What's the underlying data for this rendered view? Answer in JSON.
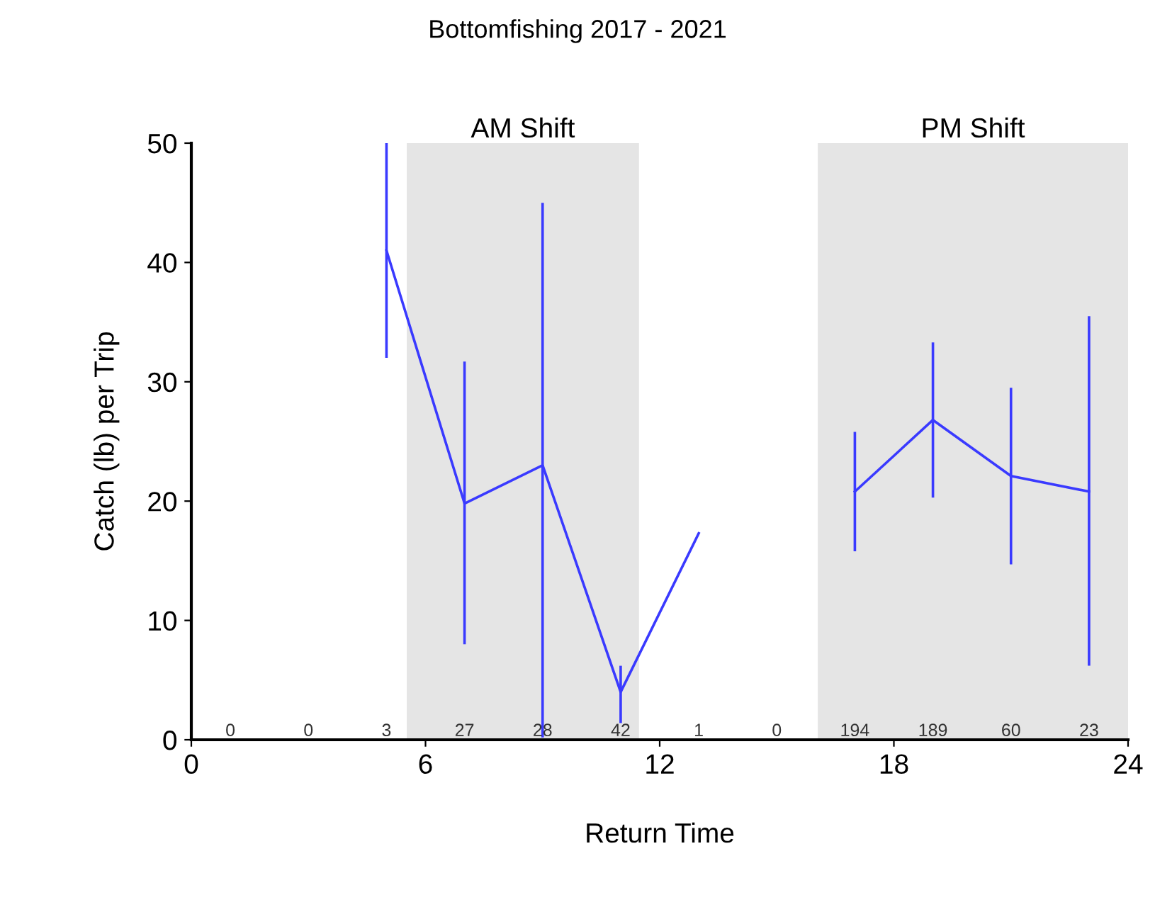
{
  "chart_data": {
    "type": "line",
    "title": "Bottomfishing 2017 - 2021",
    "xlabel": "Return Time",
    "ylabel": "Catch (lb) per Trip",
    "series": [
      {
        "color": "#3a3aff",
        "x": [
          5,
          7,
          9,
          11,
          13
        ],
        "values": [
          41,
          19.8,
          23,
          4,
          17.3
        ],
        "errors": [
          [
            32,
            50
          ],
          [
            8,
            31.7
          ],
          [
            0.2,
            45
          ],
          [
            1.4,
            6.2
          ],
          null
        ]
      },
      {
        "color": "#3a3aff",
        "x": [
          17,
          19,
          21,
          23
        ],
        "values": [
          20.8,
          26.8,
          22.1,
          20.8
        ],
        "errors": [
          [
            15.8,
            25.8
          ],
          [
            20.3,
            33.3
          ],
          [
            14.7,
            29.5
          ],
          [
            6.2,
            35.5
          ]
        ]
      }
    ],
    "xlim": [
      0,
      24
    ],
    "xticks": [
      0,
      6,
      12,
      18,
      24
    ],
    "ylim": [
      0,
      50
    ],
    "yticks": [
      0,
      10,
      20,
      30,
      40,
      50
    ],
    "bands": [
      {
        "axis": "x",
        "from": 5.52,
        "to": 11.47,
        "label": "AM Shift",
        "color": "#e5e5e5"
      },
      {
        "axis": "x",
        "from": 16.05,
        "to": 24,
        "label": "PM Shift",
        "color": "#e5e5e5"
      }
    ],
    "annotations": [
      "0",
      "0",
      "3",
      "27",
      "28",
      "42",
      "1",
      "0",
      "194",
      "189",
      "60",
      "23"
    ],
    "grid": false,
    "legend": false
  }
}
